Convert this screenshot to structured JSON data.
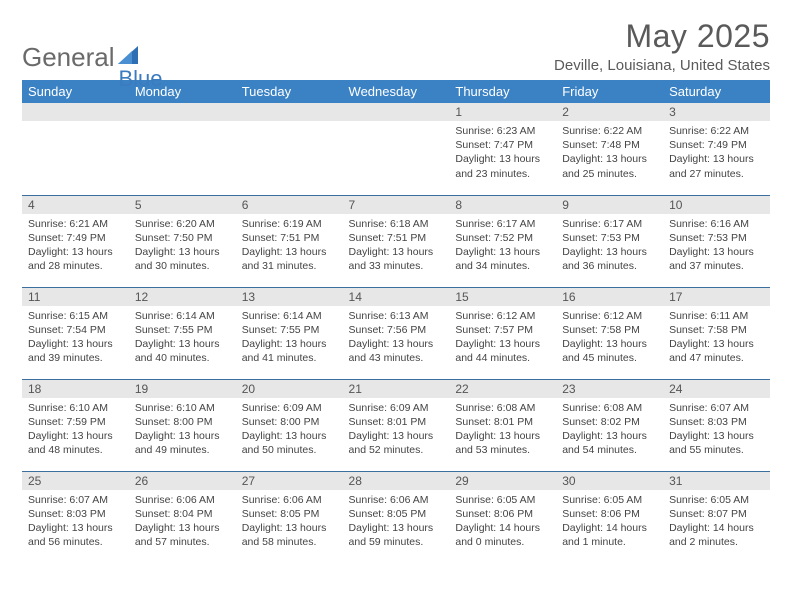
{
  "brand": {
    "part1": "General",
    "part2": "Blue"
  },
  "title": "May 2025",
  "location": "Deville, Louisiana, United States",
  "colors": {
    "header_bg": "#3b82c4",
    "header_text": "#ffffff",
    "daynum_bg": "#e7e7e7",
    "rule": "#3b6fa0",
    "brand_gray": "#6a6a6a",
    "brand_blue": "#3b7bbf"
  },
  "weekdays": [
    "Sunday",
    "Monday",
    "Tuesday",
    "Wednesday",
    "Thursday",
    "Friday",
    "Saturday"
  ],
  "first_weekday_index": 4,
  "days": [
    {
      "n": 1,
      "sr": "6:23 AM",
      "ss": "7:47 PM",
      "dl": "13 hours and 23 minutes."
    },
    {
      "n": 2,
      "sr": "6:22 AM",
      "ss": "7:48 PM",
      "dl": "13 hours and 25 minutes."
    },
    {
      "n": 3,
      "sr": "6:22 AM",
      "ss": "7:49 PM",
      "dl": "13 hours and 27 minutes."
    },
    {
      "n": 4,
      "sr": "6:21 AM",
      "ss": "7:49 PM",
      "dl": "13 hours and 28 minutes."
    },
    {
      "n": 5,
      "sr": "6:20 AM",
      "ss": "7:50 PM",
      "dl": "13 hours and 30 minutes."
    },
    {
      "n": 6,
      "sr": "6:19 AM",
      "ss": "7:51 PM",
      "dl": "13 hours and 31 minutes."
    },
    {
      "n": 7,
      "sr": "6:18 AM",
      "ss": "7:51 PM",
      "dl": "13 hours and 33 minutes."
    },
    {
      "n": 8,
      "sr": "6:17 AM",
      "ss": "7:52 PM",
      "dl": "13 hours and 34 minutes."
    },
    {
      "n": 9,
      "sr": "6:17 AM",
      "ss": "7:53 PM",
      "dl": "13 hours and 36 minutes."
    },
    {
      "n": 10,
      "sr": "6:16 AM",
      "ss": "7:53 PM",
      "dl": "13 hours and 37 minutes."
    },
    {
      "n": 11,
      "sr": "6:15 AM",
      "ss": "7:54 PM",
      "dl": "13 hours and 39 minutes."
    },
    {
      "n": 12,
      "sr": "6:14 AM",
      "ss": "7:55 PM",
      "dl": "13 hours and 40 minutes."
    },
    {
      "n": 13,
      "sr": "6:14 AM",
      "ss": "7:55 PM",
      "dl": "13 hours and 41 minutes."
    },
    {
      "n": 14,
      "sr": "6:13 AM",
      "ss": "7:56 PM",
      "dl": "13 hours and 43 minutes."
    },
    {
      "n": 15,
      "sr": "6:12 AM",
      "ss": "7:57 PM",
      "dl": "13 hours and 44 minutes."
    },
    {
      "n": 16,
      "sr": "6:12 AM",
      "ss": "7:58 PM",
      "dl": "13 hours and 45 minutes."
    },
    {
      "n": 17,
      "sr": "6:11 AM",
      "ss": "7:58 PM",
      "dl": "13 hours and 47 minutes."
    },
    {
      "n": 18,
      "sr": "6:10 AM",
      "ss": "7:59 PM",
      "dl": "13 hours and 48 minutes."
    },
    {
      "n": 19,
      "sr": "6:10 AM",
      "ss": "8:00 PM",
      "dl": "13 hours and 49 minutes."
    },
    {
      "n": 20,
      "sr": "6:09 AM",
      "ss": "8:00 PM",
      "dl": "13 hours and 50 minutes."
    },
    {
      "n": 21,
      "sr": "6:09 AM",
      "ss": "8:01 PM",
      "dl": "13 hours and 52 minutes."
    },
    {
      "n": 22,
      "sr": "6:08 AM",
      "ss": "8:01 PM",
      "dl": "13 hours and 53 minutes."
    },
    {
      "n": 23,
      "sr": "6:08 AM",
      "ss": "8:02 PM",
      "dl": "13 hours and 54 minutes."
    },
    {
      "n": 24,
      "sr": "6:07 AM",
      "ss": "8:03 PM",
      "dl": "13 hours and 55 minutes."
    },
    {
      "n": 25,
      "sr": "6:07 AM",
      "ss": "8:03 PM",
      "dl": "13 hours and 56 minutes."
    },
    {
      "n": 26,
      "sr": "6:06 AM",
      "ss": "8:04 PM",
      "dl": "13 hours and 57 minutes."
    },
    {
      "n": 27,
      "sr": "6:06 AM",
      "ss": "8:05 PM",
      "dl": "13 hours and 58 minutes."
    },
    {
      "n": 28,
      "sr": "6:06 AM",
      "ss": "8:05 PM",
      "dl": "13 hours and 59 minutes."
    },
    {
      "n": 29,
      "sr": "6:05 AM",
      "ss": "8:06 PM",
      "dl": "14 hours and 0 minutes."
    },
    {
      "n": 30,
      "sr": "6:05 AM",
      "ss": "8:06 PM",
      "dl": "14 hours and 1 minute."
    },
    {
      "n": 31,
      "sr": "6:05 AM",
      "ss": "8:07 PM",
      "dl": "14 hours and 2 minutes."
    }
  ],
  "labels": {
    "sunrise": "Sunrise:",
    "sunset": "Sunset:",
    "daylight": "Daylight:"
  }
}
